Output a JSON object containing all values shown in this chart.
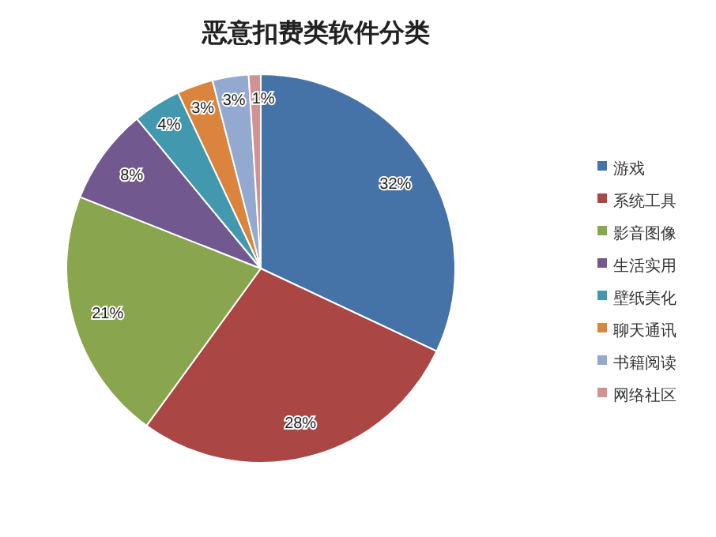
{
  "chart_data": {
    "type": "pie",
    "title": "恶意扣费类软件分类",
    "categories": [
      "游戏",
      "系统工具",
      "影音图像",
      "生活实用",
      "壁纸美化",
      "聊天通讯",
      "书籍阅读",
      "网络社区"
    ],
    "values": [
      32,
      28,
      21,
      8,
      4,
      3,
      3,
      1
    ],
    "colors": [
      "#4572a7",
      "#aa4643",
      "#89a54e",
      "#71588f",
      "#4198af",
      "#db843d",
      "#93a9cf",
      "#d19392"
    ],
    "value_labels": [
      "32%",
      "28%",
      "21%",
      "8%",
      "4%",
      "3%",
      "3%",
      "1%"
    ],
    "legend": "right"
  }
}
